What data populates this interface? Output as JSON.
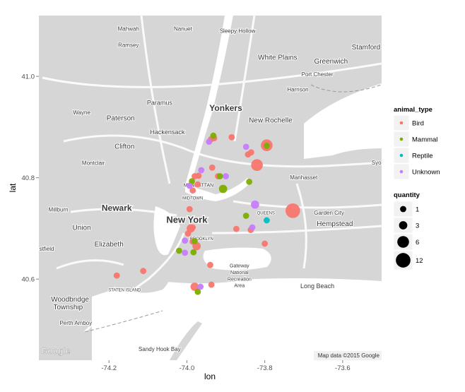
{
  "chart_data": {
    "type": "scatter",
    "xlabel": "lon",
    "ylabel": "lat",
    "xlim": [
      -74.38,
      -73.5
    ],
    "ylim": [
      40.44,
      41.12
    ],
    "x_ticks": [
      -74.2,
      -74.0,
      -73.8,
      -73.6
    ],
    "x_tick_labels": [
      "-74.2",
      "-74.0",
      "-73.8",
      "-73.6"
    ],
    "y_ticks": [
      40.6,
      40.8,
      41.0
    ],
    "y_tick_labels": [
      "40.6",
      "40.8",
      "41.0"
    ],
    "colors": {
      "Bird": "#f8766d",
      "Mammal": "#7cae00",
      "Reptile": "#00bfc4",
      "Unknown": "#c77cff"
    },
    "color_legend": {
      "title": "animal_type",
      "entries": [
        "Bird",
        "Mammal",
        "Reptile",
        "Unknown"
      ]
    },
    "size_legend": {
      "title": "quantity",
      "entries": [
        1,
        3,
        6,
        12
      ]
    },
    "points": [
      {
        "lon": -74.18,
        "lat": 40.607,
        "type": "Bird",
        "q": 1
      },
      {
        "lon": -74.112,
        "lat": 40.616,
        "type": "Bird",
        "q": 1
      },
      {
        "lon": -73.938,
        "lat": 40.876,
        "type": "Bird",
        "q": 1
      },
      {
        "lon": -73.93,
        "lat": 40.878,
        "type": "Bird",
        "q": 1
      },
      {
        "lon": -73.885,
        "lat": 40.88,
        "type": "Bird",
        "q": 1
      },
      {
        "lon": -73.795,
        "lat": 40.864,
        "type": "Bird",
        "q": 6
      },
      {
        "lon": -73.835,
        "lat": 40.85,
        "type": "Bird",
        "q": 1
      },
      {
        "lon": -73.843,
        "lat": 40.846,
        "type": "Bird",
        "q": 1
      },
      {
        "lon": -73.82,
        "lat": 40.825,
        "type": "Bird",
        "q": 6
      },
      {
        "lon": -73.728,
        "lat": 40.735,
        "type": "Bird",
        "q": 12
      },
      {
        "lon": -73.935,
        "lat": 40.82,
        "type": "Bird",
        "q": 1
      },
      {
        "lon": -73.92,
        "lat": 40.803,
        "type": "Bird",
        "q": 1
      },
      {
        "lon": -73.97,
        "lat": 40.804,
        "type": "Bird",
        "q": 1
      },
      {
        "lon": -73.98,
        "lat": 40.803,
        "type": "Bird",
        "q": 1
      },
      {
        "lon": -73.972,
        "lat": 40.787,
        "type": "Bird",
        "q": 1
      },
      {
        "lon": -73.985,
        "lat": 40.775,
        "type": "Bird",
        "q": 1
      },
      {
        "lon": -73.993,
        "lat": 40.738,
        "type": "Bird",
        "q": 1
      },
      {
        "lon": -73.99,
        "lat": 40.7,
        "type": "Bird",
        "q": 3
      },
      {
        "lon": -73.985,
        "lat": 40.702,
        "type": "Bird",
        "q": 1
      },
      {
        "lon": -73.997,
        "lat": 40.69,
        "type": "Bird",
        "q": 1
      },
      {
        "lon": -73.985,
        "lat": 40.674,
        "type": "Bird",
        "q": 1
      },
      {
        "lon": -73.975,
        "lat": 40.665,
        "type": "Bird",
        "q": 3
      },
      {
        "lon": -73.873,
        "lat": 40.699,
        "type": "Bird",
        "q": 1
      },
      {
        "lon": -73.8,
        "lat": 40.67,
        "type": "Bird",
        "q": 1
      },
      {
        "lon": -73.836,
        "lat": 40.697,
        "type": "Bird",
        "q": 1
      },
      {
        "lon": -73.94,
        "lat": 40.628,
        "type": "Bird",
        "q": 1
      },
      {
        "lon": -73.98,
        "lat": 40.585,
        "type": "Bird",
        "q": 3
      },
      {
        "lon": -73.937,
        "lat": 40.589,
        "type": "Bird",
        "q": 1
      },
      {
        "lon": -73.932,
        "lat": 40.883,
        "type": "Mammal",
        "q": 1
      },
      {
        "lon": -73.795,
        "lat": 40.863,
        "type": "Mammal",
        "q": 1
      },
      {
        "lon": -73.915,
        "lat": 40.803,
        "type": "Mammal",
        "q": 1
      },
      {
        "lon": -73.84,
        "lat": 40.792,
        "type": "Mammal",
        "q": 1
      },
      {
        "lon": -73.907,
        "lat": 40.778,
        "type": "Mammal",
        "q": 3
      },
      {
        "lon": -73.987,
        "lat": 40.793,
        "type": "Mammal",
        "q": 1
      },
      {
        "lon": -73.848,
        "lat": 40.725,
        "type": "Mammal",
        "q": 1
      },
      {
        "lon": -73.98,
        "lat": 40.675,
        "type": "Mammal",
        "q": 1
      },
      {
        "lon": -74.02,
        "lat": 40.656,
        "type": "Mammal",
        "q": 1
      },
      {
        "lon": -73.983,
        "lat": 40.653,
        "type": "Mammal",
        "q": 1
      },
      {
        "lon": -73.972,
        "lat": 40.575,
        "type": "Mammal",
        "q": 1
      },
      {
        "lon": -73.943,
        "lat": 40.871,
        "type": "Unknown",
        "q": 1
      },
      {
        "lon": -73.848,
        "lat": 40.861,
        "type": "Unknown",
        "q": 1
      },
      {
        "lon": -73.963,
        "lat": 40.815,
        "type": "Unknown",
        "q": 1
      },
      {
        "lon": -73.9,
        "lat": 40.803,
        "type": "Unknown",
        "q": 1
      },
      {
        "lon": -73.993,
        "lat": 40.784,
        "type": "Unknown",
        "q": 1
      },
      {
        "lon": -73.825,
        "lat": 40.747,
        "type": "Unknown",
        "q": 3
      },
      {
        "lon": -73.832,
        "lat": 40.702,
        "type": "Unknown",
        "q": 1
      },
      {
        "lon": -74.005,
        "lat": 40.676,
        "type": "Unknown",
        "q": 1
      },
      {
        "lon": -74.005,
        "lat": 40.652,
        "type": "Unknown",
        "q": 1
      },
      {
        "lon": -73.965,
        "lat": 40.585,
        "type": "Unknown",
        "q": 1
      },
      {
        "lon": -73.795,
        "lat": 40.716,
        "type": "Reptile",
        "q": 1
      }
    ]
  },
  "map": {
    "labels": [
      {
        "text": "Mahwah",
        "lon": -74.15,
        "lat": 41.09,
        "size": 8
      },
      {
        "text": "Nanuet",
        "lon": -74.01,
        "lat": 41.09,
        "size": 8
      },
      {
        "text": "Sleepy Hollow",
        "lon": -73.87,
        "lat": 41.086,
        "size": 8
      },
      {
        "text": "Ramsey",
        "lon": -74.15,
        "lat": 41.058,
        "size": 8
      },
      {
        "text": "White Plains",
        "lon": -73.767,
        "lat": 41.033,
        "size": 10
      },
      {
        "text": "Greenwich",
        "lon": -73.63,
        "lat": 41.025,
        "size": 10
      },
      {
        "text": "Stamford",
        "lon": -73.54,
        "lat": 41.053,
        "size": 10
      },
      {
        "text": "Port Chester",
        "lon": -73.665,
        "lat": 41.0,
        "size": 8
      },
      {
        "text": "Harrison",
        "lon": -73.715,
        "lat": 40.97,
        "size": 8
      },
      {
        "text": "Paramus",
        "lon": -74.07,
        "lat": 40.944,
        "size": 9
      },
      {
        "text": "Wayne",
        "lon": -74.27,
        "lat": 40.925,
        "size": 8
      },
      {
        "text": "Yonkers",
        "lon": -73.9,
        "lat": 40.932,
        "size": 12,
        "bold": true
      },
      {
        "text": "Paterson",
        "lon": -74.17,
        "lat": 40.913,
        "size": 10
      },
      {
        "text": "New Rochelle",
        "lon": -73.785,
        "lat": 40.909,
        "size": 10
      },
      {
        "text": "Hackensack",
        "lon": -74.05,
        "lat": 40.886,
        "size": 9
      },
      {
        "text": "Clifton",
        "lon": -74.16,
        "lat": 40.857,
        "size": 10
      },
      {
        "text": "Montclair",
        "lon": -74.24,
        "lat": 40.825,
        "size": 8
      },
      {
        "text": "Syosset",
        "lon": -73.5,
        "lat": 40.826,
        "size": 8
      },
      {
        "text": "Manhasset",
        "lon": -73.7,
        "lat": 40.797,
        "size": 8
      },
      {
        "text": "MANHATTAN",
        "lon": -73.97,
        "lat": 40.782,
        "size": 7
      },
      {
        "text": "MIDTOWN",
        "lon": -73.985,
        "lat": 40.757,
        "size": 6
      },
      {
        "text": "Newark",
        "lon": -74.18,
        "lat": 40.735,
        "size": 12,
        "bold": true
      },
      {
        "text": "Millburn",
        "lon": -74.33,
        "lat": 40.733,
        "size": 8
      },
      {
        "text": "New York",
        "lon": -74.0,
        "lat": 40.711,
        "size": 13,
        "bold": true
      },
      {
        "text": "QUEENS",
        "lon": -73.797,
        "lat": 40.728,
        "size": 6
      },
      {
        "text": "Garden City",
        "lon": -73.635,
        "lat": 40.727,
        "size": 8
      },
      {
        "text": "Hempstead",
        "lon": -73.62,
        "lat": 40.705,
        "size": 10
      },
      {
        "text": "Union",
        "lon": -74.27,
        "lat": 40.697,
        "size": 10
      },
      {
        "text": "BROOKLYN",
        "lon": -73.962,
        "lat": 40.677,
        "size": 6
      },
      {
        "text": "Elizabeth",
        "lon": -74.2,
        "lat": 40.664,
        "size": 10
      },
      {
        "text": "stfield",
        "lon": -74.36,
        "lat": 40.656,
        "size": 8
      },
      {
        "text": "Gateway",
        "lon": -73.865,
        "lat": 40.623,
        "size": 7
      },
      {
        "text": "National",
        "lon": -73.865,
        "lat": 40.61,
        "size": 7
      },
      {
        "text": "Recreation",
        "lon": -73.865,
        "lat": 40.597,
        "size": 7
      },
      {
        "text": "Area",
        "lon": -73.865,
        "lat": 40.584,
        "size": 7
      },
      {
        "text": "STATEN ISLAND",
        "lon": -74.16,
        "lat": 40.576,
        "size": 6
      },
      {
        "text": "Long Beach",
        "lon": -73.665,
        "lat": 40.582,
        "size": 9
      },
      {
        "text": "Woodbridge",
        "lon": -74.3,
        "lat": 40.556,
        "size": 10
      },
      {
        "text": "Township",
        "lon": -74.305,
        "lat": 40.54,
        "size": 10
      },
      {
        "text": "Perth Amboy",
        "lon": -74.285,
        "lat": 40.51,
        "size": 8
      },
      {
        "text": "Sandy Hook Bay",
        "lon": -74.07,
        "lat": 40.458,
        "size": 8
      }
    ],
    "google_logo": "Google",
    "attribution": "Map data ©2015 Google"
  }
}
